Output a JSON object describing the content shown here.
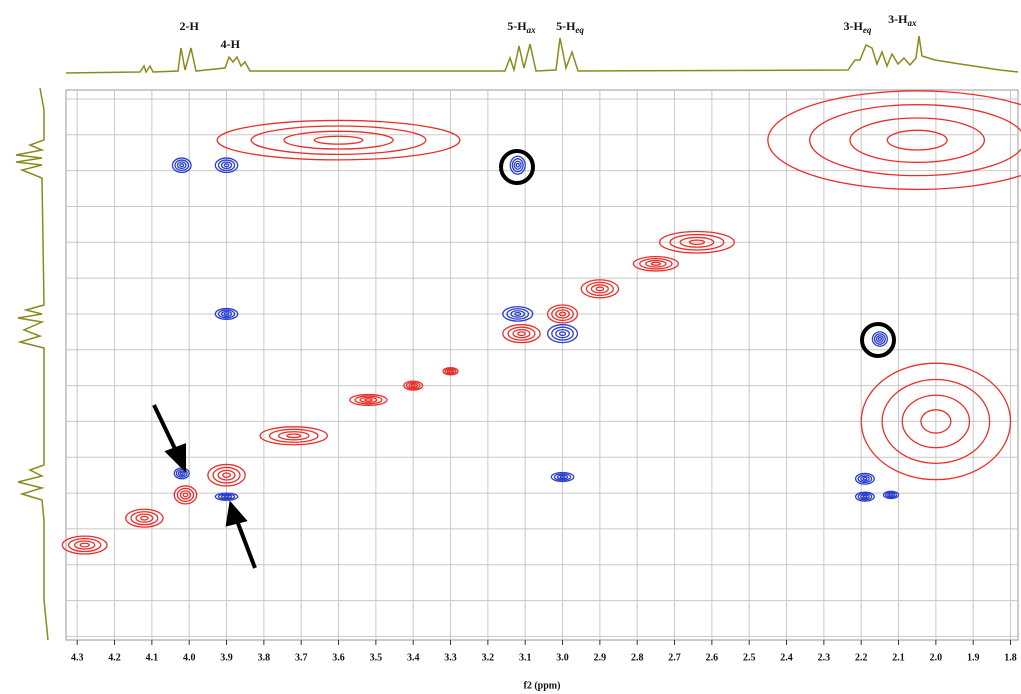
{
  "chart_data": {
    "type": "contour2d",
    "xlabel": "f2 (ppm)",
    "xlim": [
      4.33,
      1.78
    ],
    "ylim": [
      1.75,
      4.82
    ],
    "xticks": [
      4.3,
      4.2,
      4.1,
      {
        "value": 4,
        "label": "4.0"
      },
      3.9,
      3.8,
      3.7,
      3.6,
      3.5,
      3.4,
      3.3,
      3.2,
      3.1,
      {
        "value": 3,
        "label": "3.0"
      },
      2.9,
      2.8,
      2.7,
      2.6,
      2.5,
      2.4,
      2.3,
      2.2,
      2.1,
      {
        "value": 2,
        "label": "2.0"
      },
      1.9,
      1.8
    ],
    "yticks": [
      1.8,
      2.0,
      2.2,
      2.4,
      2.6,
      2.8,
      3.0,
      3.2,
      3.4,
      3.6,
      3.8,
      4.0,
      4.2,
      4.4,
      4.6,
      4.8
    ],
    "grid": true,
    "peak_labels": [
      {
        "text": "2-H",
        "x": 4.0
      },
      {
        "text": "4-H",
        "x": 3.89
      },
      {
        "text": "5-H",
        "sub": "ax",
        "x": 3.11
      },
      {
        "text": "5-H",
        "sub": "eq",
        "x": 2.98
      },
      {
        "text": "3-H",
        "sub": "eq",
        "x": 2.21
      },
      {
        "text": "3-H",
        "sub": "ax",
        "x": 2.09
      }
    ],
    "series": [
      {
        "color": "#e8302a",
        "x": [
          4.01,
          3.9,
          3.11,
          3.0,
          4.28,
          4.12,
          3.72,
          3.52,
          3.4,
          3.3,
          2.64,
          2.75,
          2.9,
          3.6,
          2.05,
          2.0
        ],
        "y": [
          4.01,
          3.9,
          3.11,
          3.0,
          4.29,
          4.14,
          3.68,
          3.48,
          3.4,
          3.32,
          2.6,
          2.72,
          2.86,
          2.03,
          2.03,
          3.6
        ],
        "w": [
          0.06,
          0.1,
          0.1,
          0.08,
          0.12,
          0.1,
          0.18,
          0.1,
          0.05,
          0.04,
          0.2,
          0.12,
          0.1,
          0.65,
          0.8,
          0.4
        ],
        "h": [
          0.1,
          0.12,
          0.1,
          0.1,
          0.1,
          0.1,
          0.1,
          0.06,
          0.05,
          0.04,
          0.12,
          0.08,
          0.1,
          0.22,
          0.55,
          0.65
        ]
      },
      {
        "color": "#2a3fd0",
        "x": [
          4.02,
          3.9,
          3.12,
          3.9,
          3.12,
          3.0,
          2.15,
          4.02,
          3.9,
          3.0,
          2.19,
          2.19,
          2.12
        ],
        "y": [
          2.17,
          2.17,
          2.17,
          3.0,
          3.0,
          3.11,
          3.14,
          3.89,
          4.02,
          3.91,
          3.92,
          4.02,
          4.01
        ],
        "w": [
          0.05,
          0.06,
          0.04,
          0.06,
          0.08,
          0.08,
          0.04,
          0.04,
          0.06,
          0.06,
          0.05,
          0.05,
          0.04
        ],
        "h": [
          0.08,
          0.08,
          0.1,
          0.06,
          0.08,
          0.1,
          0.08,
          0.06,
          0.04,
          0.05,
          0.06,
          0.05,
          0.04
        ]
      }
    ]
  }
}
